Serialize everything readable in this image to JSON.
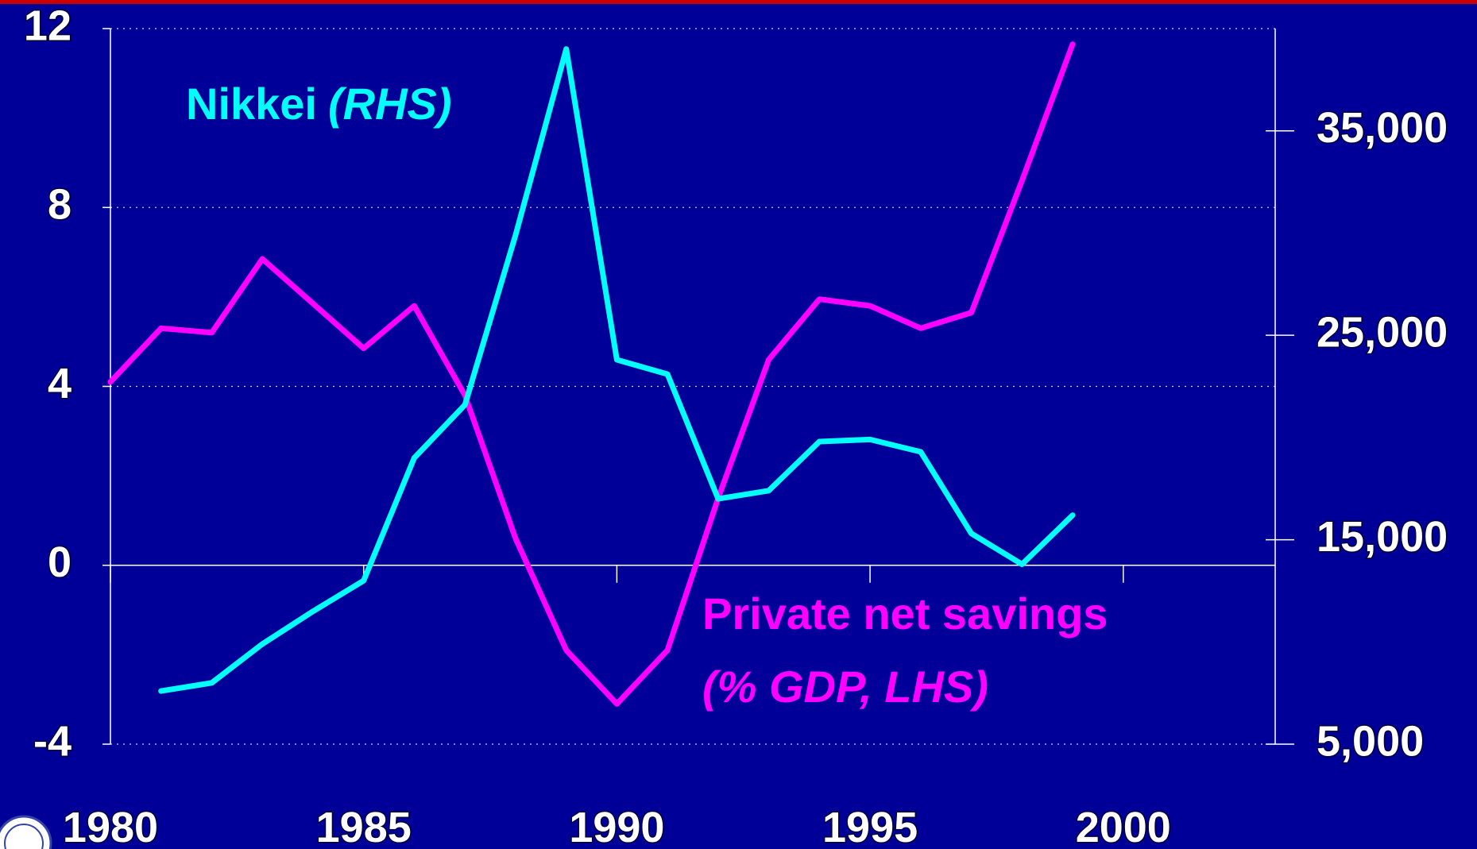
{
  "chart_data": {
    "type": "line",
    "x": [
      1980,
      1981,
      1982,
      1983,
      1984,
      1985,
      1986,
      1987,
      1988,
      1989,
      1990,
      1991,
      1992,
      1993,
      1994,
      1995,
      1996,
      1997,
      1998,
      1999
    ],
    "series": [
      {
        "name": "Private net savings",
        "note": "(% GDP, LHS)",
        "color": "#ff00ff",
        "values": [
          4.1,
          5.3,
          5.2,
          6.85,
          5.85,
          4.85,
          5.8,
          3.8,
          0.6,
          -1.9,
          -3.1,
          -1.9,
          1.5,
          4.6,
          5.95,
          5.8,
          5.3,
          5.65,
          8.6,
          11.65
        ]
      },
      {
        "name": "Nikkei",
        "note": "(RHS)",
        "color": "#00ffff",
        "axis": "y2",
        "values": [
          null,
          7600,
          8000,
          9900,
          11500,
          13000,
          19000,
          21600,
          29900,
          39000,
          23800,
          23100,
          17000,
          17400,
          19800,
          19900,
          19300,
          15300,
          13800,
          16200
        ]
      }
    ],
    "xlim": [
      1980,
      2003
    ],
    "xticks": [
      1980,
      1985,
      1990,
      1995,
      2000
    ],
    "ylim": [
      -4,
      12
    ],
    "yticks": [
      -4,
      0,
      4,
      8,
      12
    ],
    "y2lim": [
      5000,
      40000
    ],
    "y2ticks": [
      {
        "value": 5000,
        "label": "5,000"
      },
      {
        "value": 15000,
        "label": "15,000"
      },
      {
        "value": 25000,
        "label": "25,000"
      },
      {
        "value": 35000,
        "label": "35,000"
      }
    ],
    "grid": true
  }
}
